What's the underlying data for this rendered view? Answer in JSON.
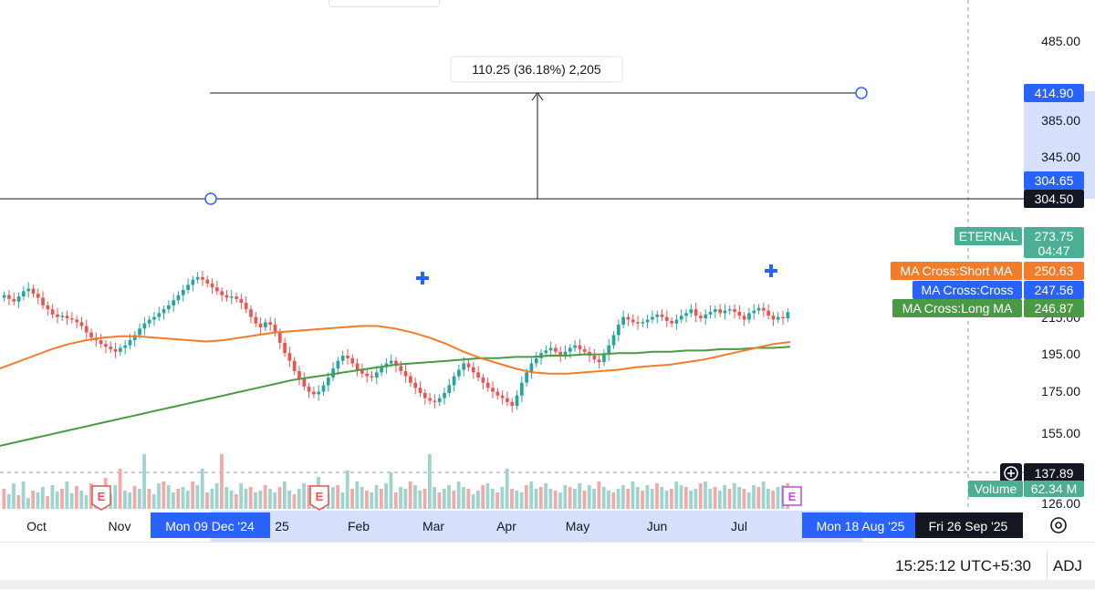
{
  "chart_data": {
    "type": "candlestick",
    "symbol": "ETERNAL",
    "last_price": "273.75",
    "countdown": "04:47",
    "price_axis": {
      "ticks": [
        "485.00",
        "385.00",
        "345.00",
        "215.00",
        "195.00",
        "175.00",
        "155.00",
        "126.00"
      ],
      "ylim": [
        126,
        505
      ]
    },
    "time_axis": {
      "ticks": [
        "Oct",
        "Nov",
        "25",
        "Feb",
        "Mar",
        "Apr",
        "May",
        "Jun",
        "Jul"
      ],
      "range_start": "Mon 09 Dec '24",
      "range_end": "Mon 18 Aug '25",
      "cursor_date": "Fri 26 Sep '25"
    },
    "price_labels": [
      {
        "value": "414.90",
        "color": "#2962ff"
      },
      {
        "value": "304.65",
        "color": "#2962ff"
      },
      {
        "value": "304.50",
        "color": "#131722"
      },
      {
        "value": "137.89",
        "color": "#131722"
      }
    ],
    "measure": {
      "label": "110.25 (36.18%) 2,205",
      "from": 304.65,
      "to": 414.9
    },
    "indicators": [
      {
        "name": "ETERNAL",
        "value": "273.75",
        "color": "#4caf93"
      },
      {
        "name": "MA Cross:Short MA",
        "value": "250.63",
        "color": "#f27c2a"
      },
      {
        "name": "MA Cross:Cross",
        "value": "247.56",
        "color": "#2962ff"
      },
      {
        "name": "MA Cross:Long MA",
        "value": "246.87",
        "color": "#4a9a45"
      }
    ],
    "volume": {
      "label": "Volume",
      "value": "62.34 M"
    },
    "earnings_marker": "E",
    "prices": [
      287,
      284,
      282,
      286,
      290,
      292,
      288,
      285,
      279,
      276,
      272,
      270,
      271,
      269,
      268,
      266,
      263,
      258,
      254,
      252,
      249,
      247,
      245,
      243,
      246,
      248,
      252,
      256,
      261,
      265,
      268,
      270,
      273,
      276,
      279,
      283,
      287,
      291,
      295,
      299,
      301,
      299,
      296,
      293,
      290,
      287,
      285,
      286,
      284,
      281,
      276,
      270,
      265,
      262,
      266,
      264,
      258,
      250,
      242,
      236,
      228,
      222,
      216,
      212,
      210,
      212,
      217,
      223,
      230,
      236,
      240,
      238,
      234,
      229,
      226,
      224,
      223,
      227,
      231,
      234,
      236,
      232,
      228,
      224,
      219,
      215,
      211,
      207,
      205,
      204,
      207,
      211,
      217,
      224,
      229,
      234,
      231,
      227,
      223,
      219,
      215,
      212,
      209,
      207,
      204,
      201,
      209,
      219,
      227,
      234,
      238,
      242,
      244,
      246,
      243,
      240,
      243,
      246,
      248,
      245,
      243,
      240,
      237,
      235,
      241,
      248,
      256,
      264,
      270,
      268,
      266,
      265,
      266,
      268,
      270,
      272,
      270,
      267,
      265,
      268,
      271,
      273,
      276,
      271,
      269,
      272,
      274,
      276,
      273,
      275,
      276,
      274,
      271,
      268,
      273,
      275,
      277,
      275,
      271,
      268,
      270,
      269,
      273.75
    ],
    "short_ma": [
      230,
      235,
      240,
      245,
      249,
      252,
      254,
      255,
      255,
      254,
      253,
      252,
      251,
      252,
      254,
      256,
      258,
      259,
      260,
      261,
      262,
      263,
      263,
      261,
      258,
      254,
      249,
      243,
      238,
      234,
      230,
      227,
      226,
      226,
      227,
      228,
      229,
      231,
      232,
      233,
      235,
      237,
      240,
      243,
      246,
      249,
      250.63
    ],
    "long_ma": [
      170,
      173,
      176,
      179,
      182,
      185,
      188,
      191,
      194,
      197,
      200,
      203,
      206,
      209,
      212,
      215,
      218,
      221,
      223,
      225,
      227,
      229,
      231,
      233,
      234,
      235,
      236,
      237,
      238,
      238,
      239,
      239,
      240,
      240,
      241,
      241,
      242,
      242,
      243,
      243,
      244,
      244,
      245,
      245,
      246,
      246,
      246.87
    ],
    "volumes": [
      22,
      16,
      28,
      15,
      30,
      12,
      20,
      18,
      24,
      14,
      26,
      19,
      22,
      30,
      17,
      25,
      20,
      15,
      28,
      22,
      18,
      34,
      16,
      26,
      44,
      20,
      18,
      25,
      22,
      60,
      22,
      16,
      28,
      30,
      26,
      18,
      22,
      24,
      20,
      30,
      26,
      44,
      18,
      22,
      28,
      60,
      24,
      20,
      16,
      28,
      22,
      24,
      18,
      20,
      26,
      22,
      18,
      24,
      30,
      20,
      16,
      22,
      28,
      26,
      22,
      35,
      20,
      18,
      24,
      26,
      18,
      42,
      22,
      30,
      24,
      20,
      18,
      26,
      22,
      28,
      40,
      18,
      24,
      22,
      30,
      26,
      20,
      22,
      60,
      24,
      18,
      22,
      26,
      20,
      30,
      24,
      22,
      16,
      20,
      26,
      28,
      22,
      18,
      24,
      44,
      22,
      20,
      18,
      26,
      30,
      22,
      24,
      28,
      22,
      20,
      18,
      26,
      24,
      22,
      28,
      20,
      26,
      22,
      30,
      24,
      20,
      18,
      22,
      26,
      22,
      30,
      24,
      20,
      26,
      22,
      28,
      24,
      20,
      22,
      30,
      26,
      24,
      20,
      22,
      28,
      30,
      22,
      24,
      20,
      26,
      22,
      28,
      24,
      22,
      18,
      26,
      24,
      30,
      22,
      20,
      24,
      26,
      28
    ]
  }
}
